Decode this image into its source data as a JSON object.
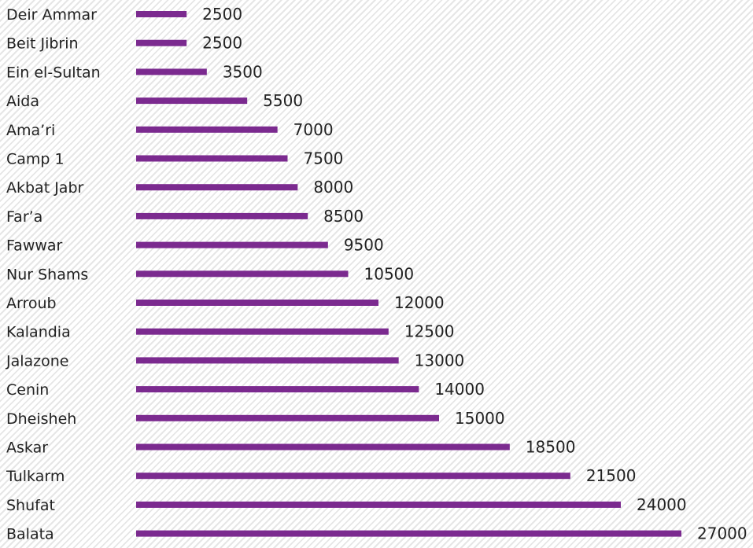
{
  "chart_data": {
    "type": "bar",
    "orientation": "horizontal",
    "categories": [
      "Deir Ammar",
      "Beit Jibrin",
      "Ein el-Sultan",
      "Aida",
      "Ama’ri",
      "Camp 1",
      "Akbat Jabr",
      "Far’a",
      "Fawwar",
      "Nur Shams",
      "Arroub",
      "Kalandia",
      "Jalazone",
      "Cenin",
      "Dheisheh",
      "Askar",
      "Tulkarm",
      "Shufat",
      "Balata"
    ],
    "values": [
      2500,
      2500,
      3500,
      5500,
      7000,
      7500,
      8000,
      8500,
      9500,
      10500,
      12000,
      12500,
      13000,
      14000,
      15000,
      18500,
      21500,
      24000,
      27000
    ],
    "value_labels": [
      "2500",
      "2500",
      "3500",
      "5500",
      "7000",
      "7500",
      "8000",
      "8500",
      "9500",
      "10500",
      "12000",
      "12500",
      "13000",
      "14000",
      "15000",
      "18500",
      "21500",
      "24000",
      "27000"
    ],
    "xlim": [
      0,
      27000
    ],
    "bar_color": "#7b2a8f",
    "grid": false,
    "legend": "none"
  }
}
